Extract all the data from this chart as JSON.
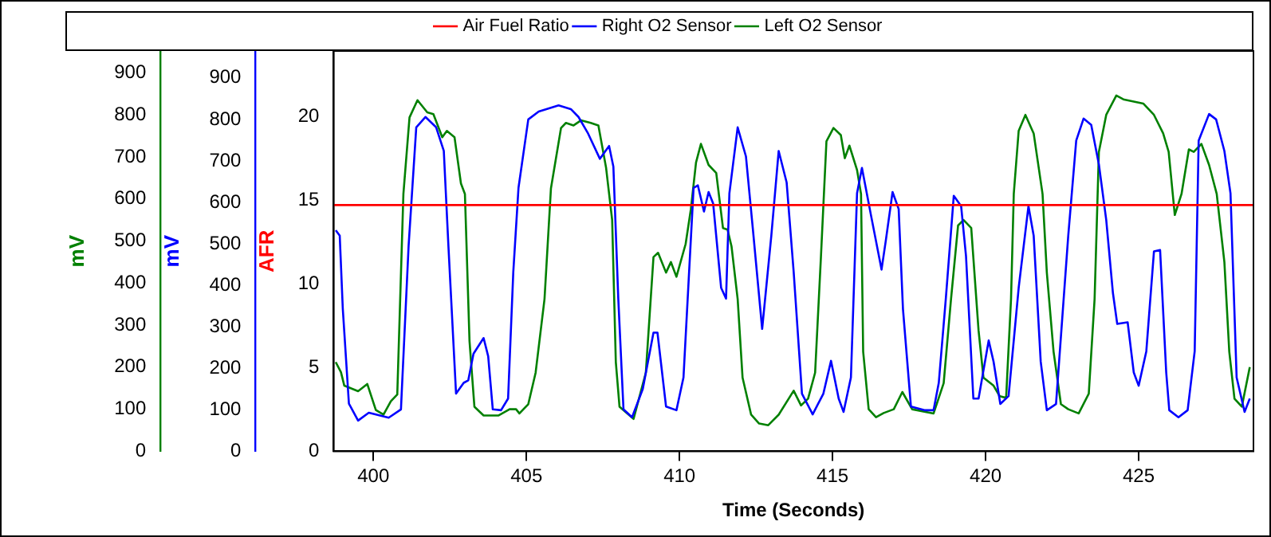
{
  "chart_data": {
    "type": "line",
    "xlabel": "Time (Seconds)",
    "ylabel": "AFR",
    "y2label": "mV",
    "y3label": "mV",
    "xlim": [
      398.7,
      428.75
    ],
    "xticks": [
      400,
      405,
      410,
      415,
      420,
      425
    ],
    "ylim": [
      0,
      23.9
    ],
    "yticks": [
      0,
      5,
      10,
      15,
      20
    ],
    "y2lim": [
      0,
      965
    ],
    "y2ticks": [
      0,
      100,
      200,
      300,
      400,
      500,
      600,
      700,
      800,
      900
    ],
    "y3lim": [
      0,
      952
    ],
    "y3ticks": [
      0,
      100,
      200,
      300,
      400,
      500,
      600,
      700,
      800,
      900
    ],
    "grid": false,
    "legend": "top",
    "series": [
      {
        "name": "Air Fuel Ratio",
        "color": "#ff0000",
        "axis": "y",
        "x": [
          398.7,
          428.75
        ],
        "values": [
          14.7,
          14.7
        ]
      },
      {
        "name": "Right O2 Sensor",
        "color": "#0000ff",
        "axis": "y2",
        "x": [
          398.77,
          398.9,
          399.0,
          399.2,
          399.5,
          399.85,
          400.5,
          400.9,
          401.15,
          401.4,
          401.7,
          402.05,
          402.3,
          402.45,
          402.7,
          402.95,
          403.1,
          403.27,
          403.6,
          403.75,
          403.9,
          404.17,
          404.4,
          404.57,
          404.74,
          405.06,
          405.4,
          406.05,
          406.45,
          406.7,
          407.0,
          407.4,
          407.7,
          407.84,
          408.0,
          408.17,
          408.45,
          408.8,
          409.15,
          409.28,
          409.56,
          409.9,
          410.13,
          410.46,
          410.6,
          410.8,
          410.95,
          411.1,
          411.36,
          411.52,
          411.63,
          411.9,
          412.17,
          412.4,
          412.7,
          413.0,
          413.24,
          413.5,
          413.73,
          414.0,
          414.35,
          414.7,
          414.95,
          415.2,
          415.36,
          415.6,
          415.8,
          415.96,
          416.25,
          416.6,
          416.74,
          416.96,
          417.16,
          417.3,
          417.56,
          418.0,
          418.3,
          418.47,
          418.7,
          418.96,
          419.2,
          419.36,
          419.6,
          419.77,
          420.1,
          420.26,
          420.48,
          420.75,
          421.08,
          421.4,
          421.57,
          421.8,
          422.0,
          422.3,
          422.7,
          422.96,
          423.2,
          423.45,
          423.7,
          423.94,
          424.16,
          424.3,
          424.64,
          424.84,
          425.0,
          425.25,
          425.5,
          425.7,
          425.9,
          426.0,
          426.3,
          426.6,
          426.83,
          426.96,
          427.3,
          427.53,
          427.8,
          428.0,
          428.2,
          428.46,
          428.63
        ],
        "values": [
          533,
          520,
          344,
          115,
          74,
          93,
          81,
          101,
          495,
          781,
          806,
          781,
          724,
          496,
          139,
          165,
          171,
          235,
          273,
          229,
          101,
          99,
          127,
          432,
          635,
          800,
          819,
          834,
          825,
          806,
          768,
          705,
          736,
          686,
          368,
          101,
          82,
          150,
          286,
          286,
          108,
          99,
          178,
          635,
          641,
          578,
          625,
          597,
          394,
          368,
          622,
          781,
          711,
          533,
          295,
          520,
          724,
          648,
          432,
          139,
          89,
          139,
          218,
          127,
          95,
          178,
          622,
          683,
          571,
          438,
          508,
          625,
          584,
          343,
          108,
          99,
          99,
          165,
          368,
          616,
          591,
          470,
          127,
          127,
          267,
          216,
          114,
          133,
          394,
          591,
          520,
          216,
          99,
          114,
          520,
          749,
          802,
          787,
          692,
          558,
          381,
          307,
          311,
          190,
          158,
          241,
          482,
          485,
          190,
          99,
          82,
          99,
          241,
          749,
          813,
          800,
          724,
          622,
          178,
          95,
          127
        ]
      },
      {
        "name": "Left O2 Sensor",
        "color": "#008000",
        "axis": "y3",
        "x": [
          398.77,
          398.94,
          399.05,
          399.5,
          399.8,
          400.08,
          400.33,
          400.57,
          400.78,
          400.98,
          401.18,
          401.44,
          401.76,
          401.96,
          402.25,
          402.4,
          402.65,
          402.86,
          402.99,
          403.14,
          403.3,
          403.6,
          404.08,
          404.45,
          404.66,
          404.77,
          405.06,
          405.3,
          405.59,
          405.8,
          406.13,
          406.29,
          406.54,
          406.78,
          407.1,
          407.35,
          407.6,
          407.8,
          407.92,
          408.04,
          408.5,
          408.9,
          409.15,
          409.3,
          409.56,
          409.72,
          409.9,
          410.2,
          410.37,
          410.54,
          410.7,
          410.95,
          411.2,
          411.42,
          411.57,
          411.7,
          411.9,
          412.06,
          412.34,
          412.6,
          412.9,
          413.24,
          413.73,
          413.97,
          414.2,
          414.43,
          414.62,
          414.8,
          415.03,
          415.27,
          415.4,
          415.55,
          415.8,
          415.93,
          416.0,
          416.18,
          416.42,
          416.67,
          417.0,
          417.28,
          417.6,
          418.3,
          418.63,
          418.87,
          419.1,
          419.28,
          419.53,
          419.77,
          419.93,
          420.26,
          420.46,
          420.67,
          420.83,
          420.92,
          421.08,
          421.3,
          421.57,
          421.86,
          422.0,
          422.22,
          422.46,
          422.7,
          423.04,
          423.37,
          423.56,
          423.7,
          423.94,
          424.27,
          424.5,
          425.15,
          425.5,
          425.8,
          425.98,
          426.18,
          426.4,
          426.64,
          426.8,
          427.05,
          427.3,
          427.55,
          427.8,
          427.96,
          428.13,
          428.37,
          428.63
        ],
        "values": [
          212,
          188,
          156,
          143,
          160,
          98,
          87,
          119,
          135,
          612,
          794,
          835,
          806,
          802,
          747,
          762,
          747,
          637,
          612,
          262,
          106,
          85,
          85,
          100,
          100,
          90,
          112,
          187,
          362,
          625,
          769,
          781,
          775,
          787,
          781,
          775,
          675,
          550,
          212,
          106,
          77,
          187,
          462,
          472,
          425,
          450,
          415,
          493,
          575,
          687,
          731,
          681,
          662,
          531,
          527,
          487,
          362,
          175,
          87,
          66,
          62,
          87,
          144,
          109,
          125,
          187,
          462,
          737,
          769,
          752,
          697,
          727,
          669,
          612,
          237,
          100,
          81,
          91,
          100,
          141,
          100,
          90,
          162,
          362,
          537,
          550,
          531,
          287,
          175,
          156,
          131,
          127,
          362,
          612,
          762,
          800,
          756,
          612,
          425,
          237,
          112,
          100,
          90,
          137,
          362,
          712,
          800,
          846,
          837,
          827,
          800,
          756,
          712,
          562,
          612,
          718,
          712,
          731,
          681,
          612,
          450,
          237,
          125,
          106,
          200
        ]
      }
    ]
  }
}
